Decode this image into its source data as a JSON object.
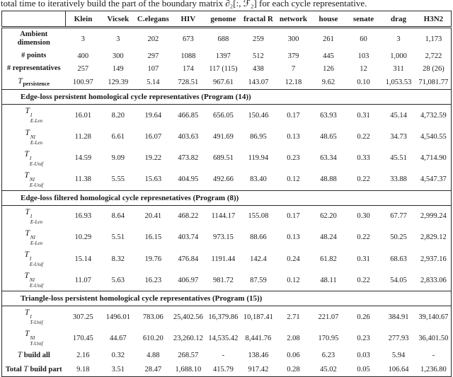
{
  "caption": "total time to iteratively build the part of the boundary matrix ∂₂[:, ℱ₂] for each cycle representative.",
  "table": {
    "columns": [
      "Klein",
      "Vicsek",
      "C.elegans",
      "HIV",
      "genome",
      "fractal R",
      "network",
      "house",
      "senate",
      "drag",
      "H3N2"
    ],
    "sections": [
      {
        "rows": [
          {
            "label": {
              "text": "Ambient dimension"
            },
            "values": [
              "3",
              "3",
              "202",
              "673",
              "688",
              "259",
              "300",
              "261",
              "60",
              "3",
              "1,173"
            ]
          },
          {
            "label": {
              "text": "# points"
            },
            "values": [
              "400",
              "300",
              "297",
              "1088",
              "1397",
              "512",
              "379",
              "445",
              "103",
              "1,000",
              "2,722"
            ]
          },
          {
            "label": {
              "text": "# representatives"
            },
            "values": [
              "257",
              "149",
              "107",
              "174",
              "117 (115)",
              "438",
              "7",
              "126",
              "12",
              "311",
              "28 (26)"
            ]
          },
          {
            "label": {
              "math_base": "T",
              "sub_bold": "persistence"
            },
            "values": [
              "100.97",
              "129.39",
              "5.14",
              "728.51",
              "967.61",
              "143.07",
              "12.18",
              "9.62",
              "0.10",
              "1,053.53",
              "71,081.77"
            ]
          }
        ]
      },
      {
        "header": "Edge-loss persistent homological cycle representatives (Program (14))",
        "rows": [
          {
            "label": {
              "math_base": "T",
              "sup": "I",
              "sub": "E-Len"
            },
            "values": [
              "16.01",
              "8.20",
              "19.64",
              "466.85",
              "656.05",
              "150.46",
              "0.17",
              "63.93",
              "0.31",
              "45.14",
              "4,732.59"
            ]
          },
          {
            "label": {
              "math_base": "T",
              "sup": "NI",
              "sub": "E-Len"
            },
            "values": [
              "11.28",
              "6.61",
              "16.07",
              "403.63",
              "491.69",
              "86.95",
              "0.13",
              "48.65",
              "0.22",
              "34.73",
              "4,540.55"
            ]
          },
          {
            "label": {
              "math_base": "T",
              "sup": "I",
              "sub": "E-Unif"
            },
            "values": [
              "14.59",
              "9.09",
              "19.22",
              "473.82",
              "689.51",
              "119.94",
              "0.23",
              "63.34",
              "0.33",
              "45.51",
              "4,714.90"
            ]
          },
          {
            "label": {
              "math_base": "T",
              "sup": "NI",
              "sub": "E-Unif"
            },
            "values": [
              "11.38",
              "5.55",
              "15.63",
              "404.95",
              "492.66",
              "83.40",
              "0.12",
              "48.88",
              "0.22",
              "33.88",
              "4,547.37"
            ]
          }
        ]
      },
      {
        "header": "Edge-loss filtered homological cycle represnetatives (Program (8))",
        "rows": [
          {
            "label": {
              "math_base": "T",
              "sup": "I",
              "sub": "E-Len"
            },
            "values": [
              "16.93",
              "8.64",
              "20.41",
              "468.22",
              "1144.17",
              "155.08",
              "0.17",
              "62.20",
              "0.30",
              "67.77",
              "2,999.24"
            ]
          },
          {
            "label": {
              "math_base": "T",
              "sup": "NI",
              "sub": "E-Len"
            },
            "values": [
              "10.29",
              "5.51",
              "16.15",
              "403.74",
              "973.15",
              "88.66",
              "0.13",
              "48.24",
              "0.22",
              "50.25",
              "2,829.12"
            ]
          },
          {
            "label": {
              "math_base": "T",
              "sup": "I",
              "sub": "E-Unif"
            },
            "values": [
              "15.14",
              "8.32",
              "19.76",
              "476.84",
              "1191.44",
              "142.4",
              "0.24",
              "61.82",
              "0.31",
              "68.63",
              "2,937.16"
            ]
          },
          {
            "label": {
              "math_base": "T",
              "sup": "NI",
              "sub": "E-Unif"
            },
            "values": [
              "11.07",
              "5.63",
              "16.23",
              "406.97",
              "981.72",
              "87.59",
              "0.12",
              "48.11",
              "0.22",
              "54.05",
              "2,833.06"
            ]
          }
        ]
      },
      {
        "header": "Triangle-loss persistent homological cycle representatives (Program (15))",
        "rows": [
          {
            "label": {
              "math_base": "T",
              "sup": "I",
              "sub": "T-Unif"
            },
            "values": [
              "307.25",
              "1496.01",
              "783.06",
              "25,402.56",
              "16,379.86",
              "10,187.41",
              "2.71",
              "221.07",
              "0.26",
              "384.91",
              "39,140.67"
            ]
          },
          {
            "label": {
              "math_base": "T",
              "sup": "NI",
              "sub": "T-Unif"
            },
            "values": [
              "170.45",
              "44.67",
              "610.20",
              "23,260.12",
              "14,535.42",
              "8,441.76",
              "2.08",
              "170.95",
              "0.23",
              "277.93",
              "36,401.50"
            ]
          },
          {
            "label": {
              "math_base": "T",
              "bold_post": " build all"
            },
            "values": [
              "2.16",
              "0.32",
              "4.88",
              "268.57",
              "-",
              "138.46",
              "0.06",
              "6.23",
              "0.03",
              "5.94",
              "-"
            ]
          },
          {
            "label": {
              "bold_pre": "Total ",
              "math_base": "T",
              "bold_post": " build part"
            },
            "values": [
              "9.18",
              "3.51",
              "28.47",
              "1,688.10",
              "415.79",
              "917.42",
              "0.28",
              "45.02",
              "0.05",
              "106.64",
              "1,236.80"
            ]
          }
        ]
      }
    ]
  }
}
